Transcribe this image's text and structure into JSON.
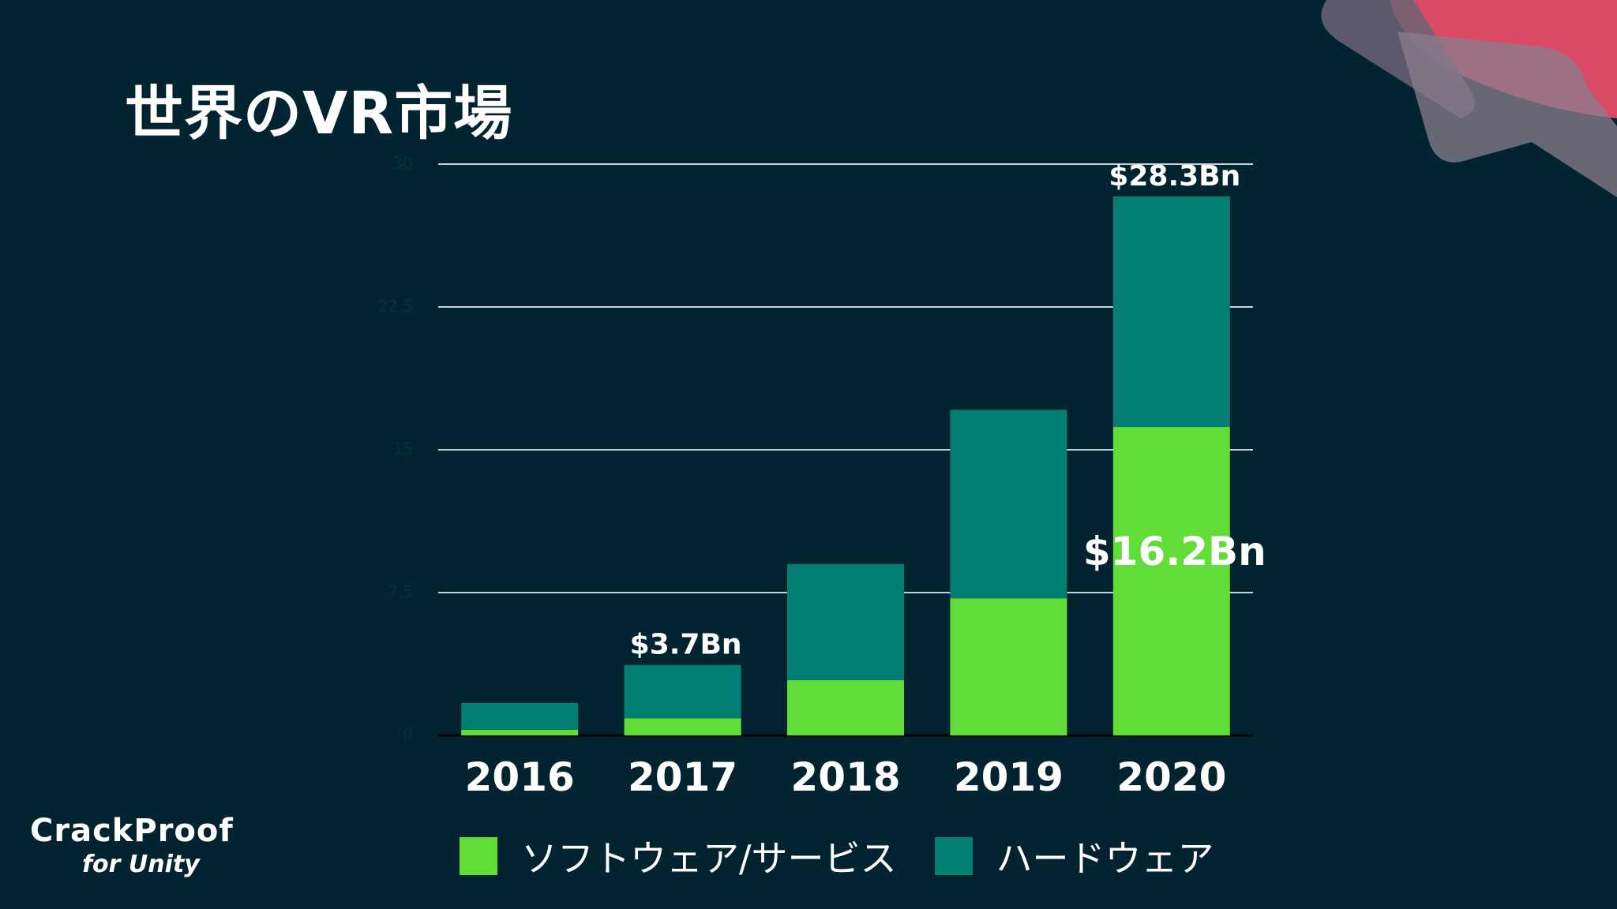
{
  "slide": {
    "title": "世界のVR市場"
  },
  "logo": {
    "main": "CrackProof",
    "sub": "for Unity"
  },
  "colors": {
    "background": "#022431",
    "software": "#62dc38",
    "hardware": "#027e72",
    "accent_pink": "#e64d6a"
  },
  "chart_data": {
    "type": "bar",
    "stacked": true,
    "categories": [
      "2016",
      "2017",
      "2018",
      "2019",
      "2020"
    ],
    "series": [
      {
        "name": "ソフトウェア/サービス",
        "color": "#62dc38",
        "values": [
          0.3,
          0.9,
          2.9,
          7.2,
          16.2
        ]
      },
      {
        "name": "ハードウェア",
        "color": "#027e72",
        "values": [
          1.4,
          2.8,
          6.1,
          9.9,
          12.1
        ]
      }
    ],
    "ylim": [
      0,
      30
    ],
    "yticks": [
      "0",
      "7.5",
      "15",
      "22.5",
      "30"
    ],
    "grid": true,
    "legend": "bottom",
    "annotations": [
      {
        "category": "2017",
        "text": "$3.7Bn",
        "position": "above"
      },
      {
        "category": "2020",
        "text": "$28.3Bn",
        "position": "above"
      },
      {
        "category": "2020",
        "text": "$16.2Bn",
        "position": "inside-software"
      }
    ]
  }
}
